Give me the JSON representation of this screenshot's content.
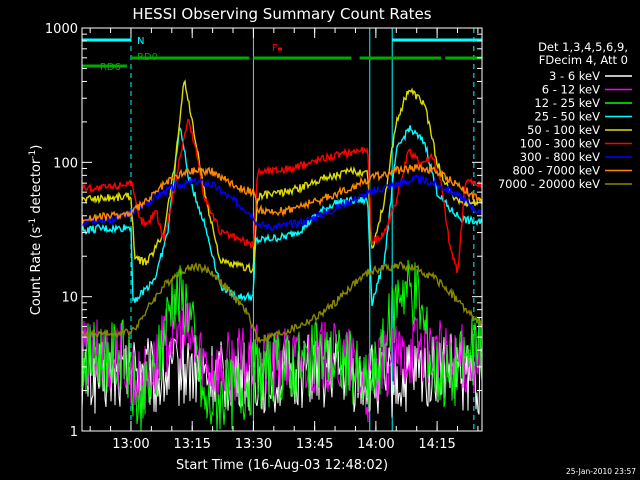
{
  "chart_data": {
    "type": "line",
    "title": "HESSI Observing Summary Count Rates",
    "xlabel": "Start Time (16-Aug-03 12:48:02)",
    "ylabel_main": "Count Rate (s",
    "ylabel_sup1": "-1",
    "ylabel_mid": " detector",
    "ylabel_sup2": "-1",
    "ylabel_end": ")",
    "yscale": "log",
    "ylim": [
      1,
      1000
    ],
    "xlim": [
      0,
      98
    ],
    "x_ticks": [
      {
        "label": "13:00",
        "value": 12
      },
      {
        "label": "13:15",
        "value": 27
      },
      {
        "label": "13:30",
        "value": 42
      },
      {
        "label": "13:45",
        "value": 57
      },
      {
        "label": "14:00",
        "value": 72
      },
      {
        "label": "14:15",
        "value": 87
      }
    ],
    "y_tick_labels": [
      "1",
      "10",
      "100",
      "1000"
    ],
    "legend_header": [
      "Det 1,3,4,5,6,9,",
      "FDecim 4, Att 0"
    ],
    "legend_placement": "right",
    "series": [
      {
        "name": "3 - 6 keV",
        "color": "#ffffff",
        "x": [
          0,
          10,
          14,
          18,
          22,
          26,
          30,
          34,
          38,
          42,
          46,
          50,
          54,
          58,
          62,
          66,
          70,
          74,
          78,
          82,
          86,
          90,
          94,
          98
        ],
        "values": [
          2.5,
          2.6,
          3.2,
          2.4,
          2.8,
          3.0,
          2.6,
          2.5,
          2.7,
          2.6,
          2.5,
          2.6,
          2.8,
          2.7,
          2.9,
          2.6,
          2.5,
          2.4,
          2.3,
          2.7,
          2.8,
          3.0,
          2.5,
          2.4
        ]
      },
      {
        "name": "6 - 12 keV",
        "color": "#ff00ff",
        "x": [
          0,
          10,
          14,
          18,
          22,
          26,
          30,
          34,
          38,
          42,
          46,
          50,
          54,
          58,
          62,
          66,
          70,
          74,
          78,
          82,
          86,
          90,
          94,
          98
        ],
        "values": [
          3.6,
          3.7,
          2.2,
          3.0,
          5.8,
          5.0,
          3.3,
          2.8,
          3.2,
          3.4,
          3.0,
          3.2,
          3.4,
          3.6,
          3.4,
          3.2,
          2.0,
          3.0,
          3.5,
          4.5,
          4.0,
          3.2,
          3.4,
          3.5
        ]
      },
      {
        "name": "12 - 25 keV",
        "color": "#00ff00",
        "x": [
          0,
          10,
          14,
          18,
          22,
          26,
          30,
          34,
          38,
          42,
          46,
          50,
          54,
          58,
          62,
          66,
          70,
          74,
          78,
          82,
          86,
          90,
          94,
          98
        ],
        "values": [
          3.5,
          3.7,
          1.5,
          2.5,
          10.5,
          9.0,
          1.5,
          1.8,
          2.0,
          2.6,
          2.8,
          3.0,
          3.2,
          3.6,
          3.4,
          3.0,
          2.0,
          4.0,
          12.5,
          11.0,
          3.0,
          2.5,
          3.5,
          4.0
        ]
      },
      {
        "name": "25 - 50 keV",
        "color": "#00ffff",
        "x": [
          0,
          4,
          8,
          12,
          12.5,
          14,
          18,
          21,
          24,
          26,
          30,
          34,
          38,
          42,
          42.5,
          46,
          50,
          54,
          58,
          62,
          66,
          70,
          71,
          74,
          77,
          80,
          84,
          87,
          90,
          93,
          96,
          98
        ],
        "values": [
          31,
          32,
          32,
          33,
          9.5,
          10,
          14,
          30,
          190,
          80,
          35,
          12,
          10,
          10,
          26,
          27,
          28,
          32,
          42,
          50,
          52,
          52,
          9,
          18,
          120,
          180,
          140,
          60,
          45,
          38,
          36,
          35
        ]
      },
      {
        "name": "50 - 100 keV",
        "color": "#dddd00",
        "x": [
          0,
          4,
          8,
          12,
          13,
          16,
          20,
          23,
          25,
          27,
          30,
          34,
          38,
          42,
          43,
          46,
          50,
          54,
          58,
          62,
          66,
          70,
          71,
          74,
          77,
          80,
          84,
          87,
          90,
          93,
          96,
          98
        ],
        "values": [
          53,
          54,
          55,
          56,
          19,
          18,
          30,
          110,
          420,
          200,
          60,
          18,
          17,
          16,
          55,
          58,
          60,
          65,
          75,
          80,
          85,
          85,
          22,
          50,
          200,
          350,
          270,
          100,
          60,
          50,
          50,
          51
        ]
      },
      {
        "name": "100 - 300 keV",
        "color": "#ff0000",
        "x": [
          0,
          4,
          8,
          12,
          14,
          16,
          18,
          20,
          22,
          24,
          26,
          28,
          30,
          34,
          38,
          42,
          43,
          48,
          52,
          56,
          60,
          64,
          68,
          70,
          71,
          74,
          77,
          80,
          83,
          86,
          88,
          90,
          92,
          94,
          96,
          98
        ],
        "values": [
          65,
          64,
          66,
          72,
          38,
          34,
          45,
          27,
          50,
          110,
          210,
          120,
          55,
          30,
          27,
          24,
          85,
          88,
          90,
          100,
          110,
          115,
          125,
          120,
          25,
          30,
          52,
          120,
          100,
          110,
          70,
          25,
          15,
          75,
          70,
          68
        ]
      },
      {
        "name": "300 - 800 keV",
        "color": "#0000ff",
        "x": [
          0,
          4,
          8,
          12,
          16,
          20,
          24,
          28,
          32,
          36,
          40,
          42,
          43,
          46,
          50,
          54,
          58,
          62,
          66,
          70,
          74,
          78,
          82,
          86,
          90,
          94,
          98
        ],
        "values": [
          36,
          37,
          38,
          42,
          50,
          60,
          68,
          72,
          68,
          55,
          45,
          40,
          35,
          33,
          34,
          36,
          40,
          45,
          52,
          58,
          65,
          70,
          75,
          70,
          62,
          52,
          40
        ]
      },
      {
        "name": "800 - 7000 keV",
        "color": "#ff8800",
        "x": [
          0,
          4,
          8,
          12,
          16,
          20,
          24,
          28,
          32,
          36,
          40,
          42,
          43,
          46,
          50,
          54,
          58,
          62,
          66,
          70,
          74,
          78,
          82,
          86,
          90,
          94,
          98
        ],
        "values": [
          38,
          39,
          40,
          42,
          52,
          68,
          82,
          88,
          85,
          72,
          62,
          60,
          45,
          42,
          44,
          48,
          52,
          58,
          65,
          75,
          82,
          88,
          92,
          88,
          75,
          62,
          50
        ]
      },
      {
        "name": "7000 - 20000 keV",
        "color": "#888800",
        "x": [
          0,
          4,
          8,
          12,
          14,
          17,
          20,
          24,
          28,
          32,
          36,
          40,
          42,
          43,
          46,
          50,
          54,
          58,
          62,
          66,
          70,
          74,
          78,
          82,
          86,
          90,
          94,
          98
        ],
        "values": [
          5.2,
          5.3,
          5.3,
          5.5,
          6.5,
          9,
          12,
          15.5,
          17,
          15,
          11,
          8,
          6,
          4.8,
          5,
          5.5,
          6.2,
          7.2,
          9,
          12,
          15,
          16.5,
          17,
          16,
          14,
          11,
          8,
          6
        ]
      }
    ],
    "rectangles": [
      {
        "label": "N",
        "color": "#00ffff",
        "segments": [
          [
            0,
            12
          ],
          [
            76,
            98
          ]
        ],
        "level": "top"
      },
      {
        "label": "F",
        "color": "#ff0000",
        "segments": [
          [
            48,
            49
          ]
        ],
        "level": "flare"
      },
      {
        "label": "RD0",
        "color": "#00aa00",
        "segments": [
          [
            12,
            41
          ],
          [
            42,
            66
          ],
          [
            68,
            88
          ],
          [
            89,
            98
          ]
        ],
        "level": "upper"
      },
      {
        "label": "RD6",
        "color": "#00aa00",
        "segments": [
          [
            0,
            11
          ]
        ],
        "level": "lower"
      }
    ],
    "vertical_markers": [
      {
        "x": 12,
        "style": "dashed",
        "color": "#00ffff"
      },
      {
        "x": 96,
        "style": "dashed",
        "color": "#00ffff"
      },
      {
        "x": 42,
        "style": "solid",
        "color": "#00ffff"
      },
      {
        "x": 70.5,
        "style": "solid",
        "color": "#00ffff"
      },
      {
        "x": 76,
        "style": "solid",
        "color": "#00ffff"
      }
    ]
  },
  "footer": {
    "timestamp": "25-Jan-2010 23:57"
  }
}
